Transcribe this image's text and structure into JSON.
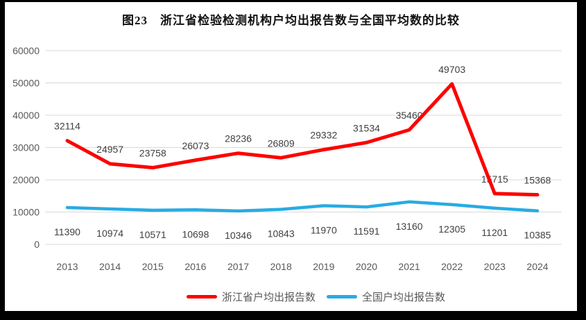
{
  "title": "图23　浙江省检验检测机构户均出报告数与全国平均数的比较",
  "chart_data": {
    "type": "line",
    "title": "图23　浙江省检验检测机构户均出报告数与全国平均数的比较",
    "categories": [
      "2013",
      "2014",
      "2015",
      "2016",
      "2017",
      "2018",
      "2019",
      "2020",
      "2021",
      "2022",
      "2023",
      "2024"
    ],
    "series": [
      {
        "name": "浙江省户均出报告数",
        "color": "#fe0000",
        "label_position": "above",
        "values": [
          32114,
          24957,
          23758,
          26073,
          28236,
          26809,
          29332,
          31534,
          35460,
          49703,
          15715,
          15368
        ]
      },
      {
        "name": "全国户均出报告数",
        "color": "#29abe2",
        "label_position": "below",
        "values": [
          11390,
          10974,
          10571,
          10698,
          10346,
          10843,
          11970,
          11591,
          13160,
          12305,
          11201,
          10385
        ]
      }
    ],
    "ylim": [
      0,
      60000
    ],
    "ytick_step": 10000,
    "yticks": [
      "0",
      "10000",
      "20000",
      "30000",
      "40000",
      "50000",
      "60000"
    ],
    "grid": true,
    "data_labels": true,
    "legend_position": "bottom",
    "colors": {
      "gridline": "#d9d9d9",
      "axis_text": "#595959",
      "data_label": "#3f3f3f",
      "background": "#ffffff",
      "frame": "#000000"
    }
  }
}
